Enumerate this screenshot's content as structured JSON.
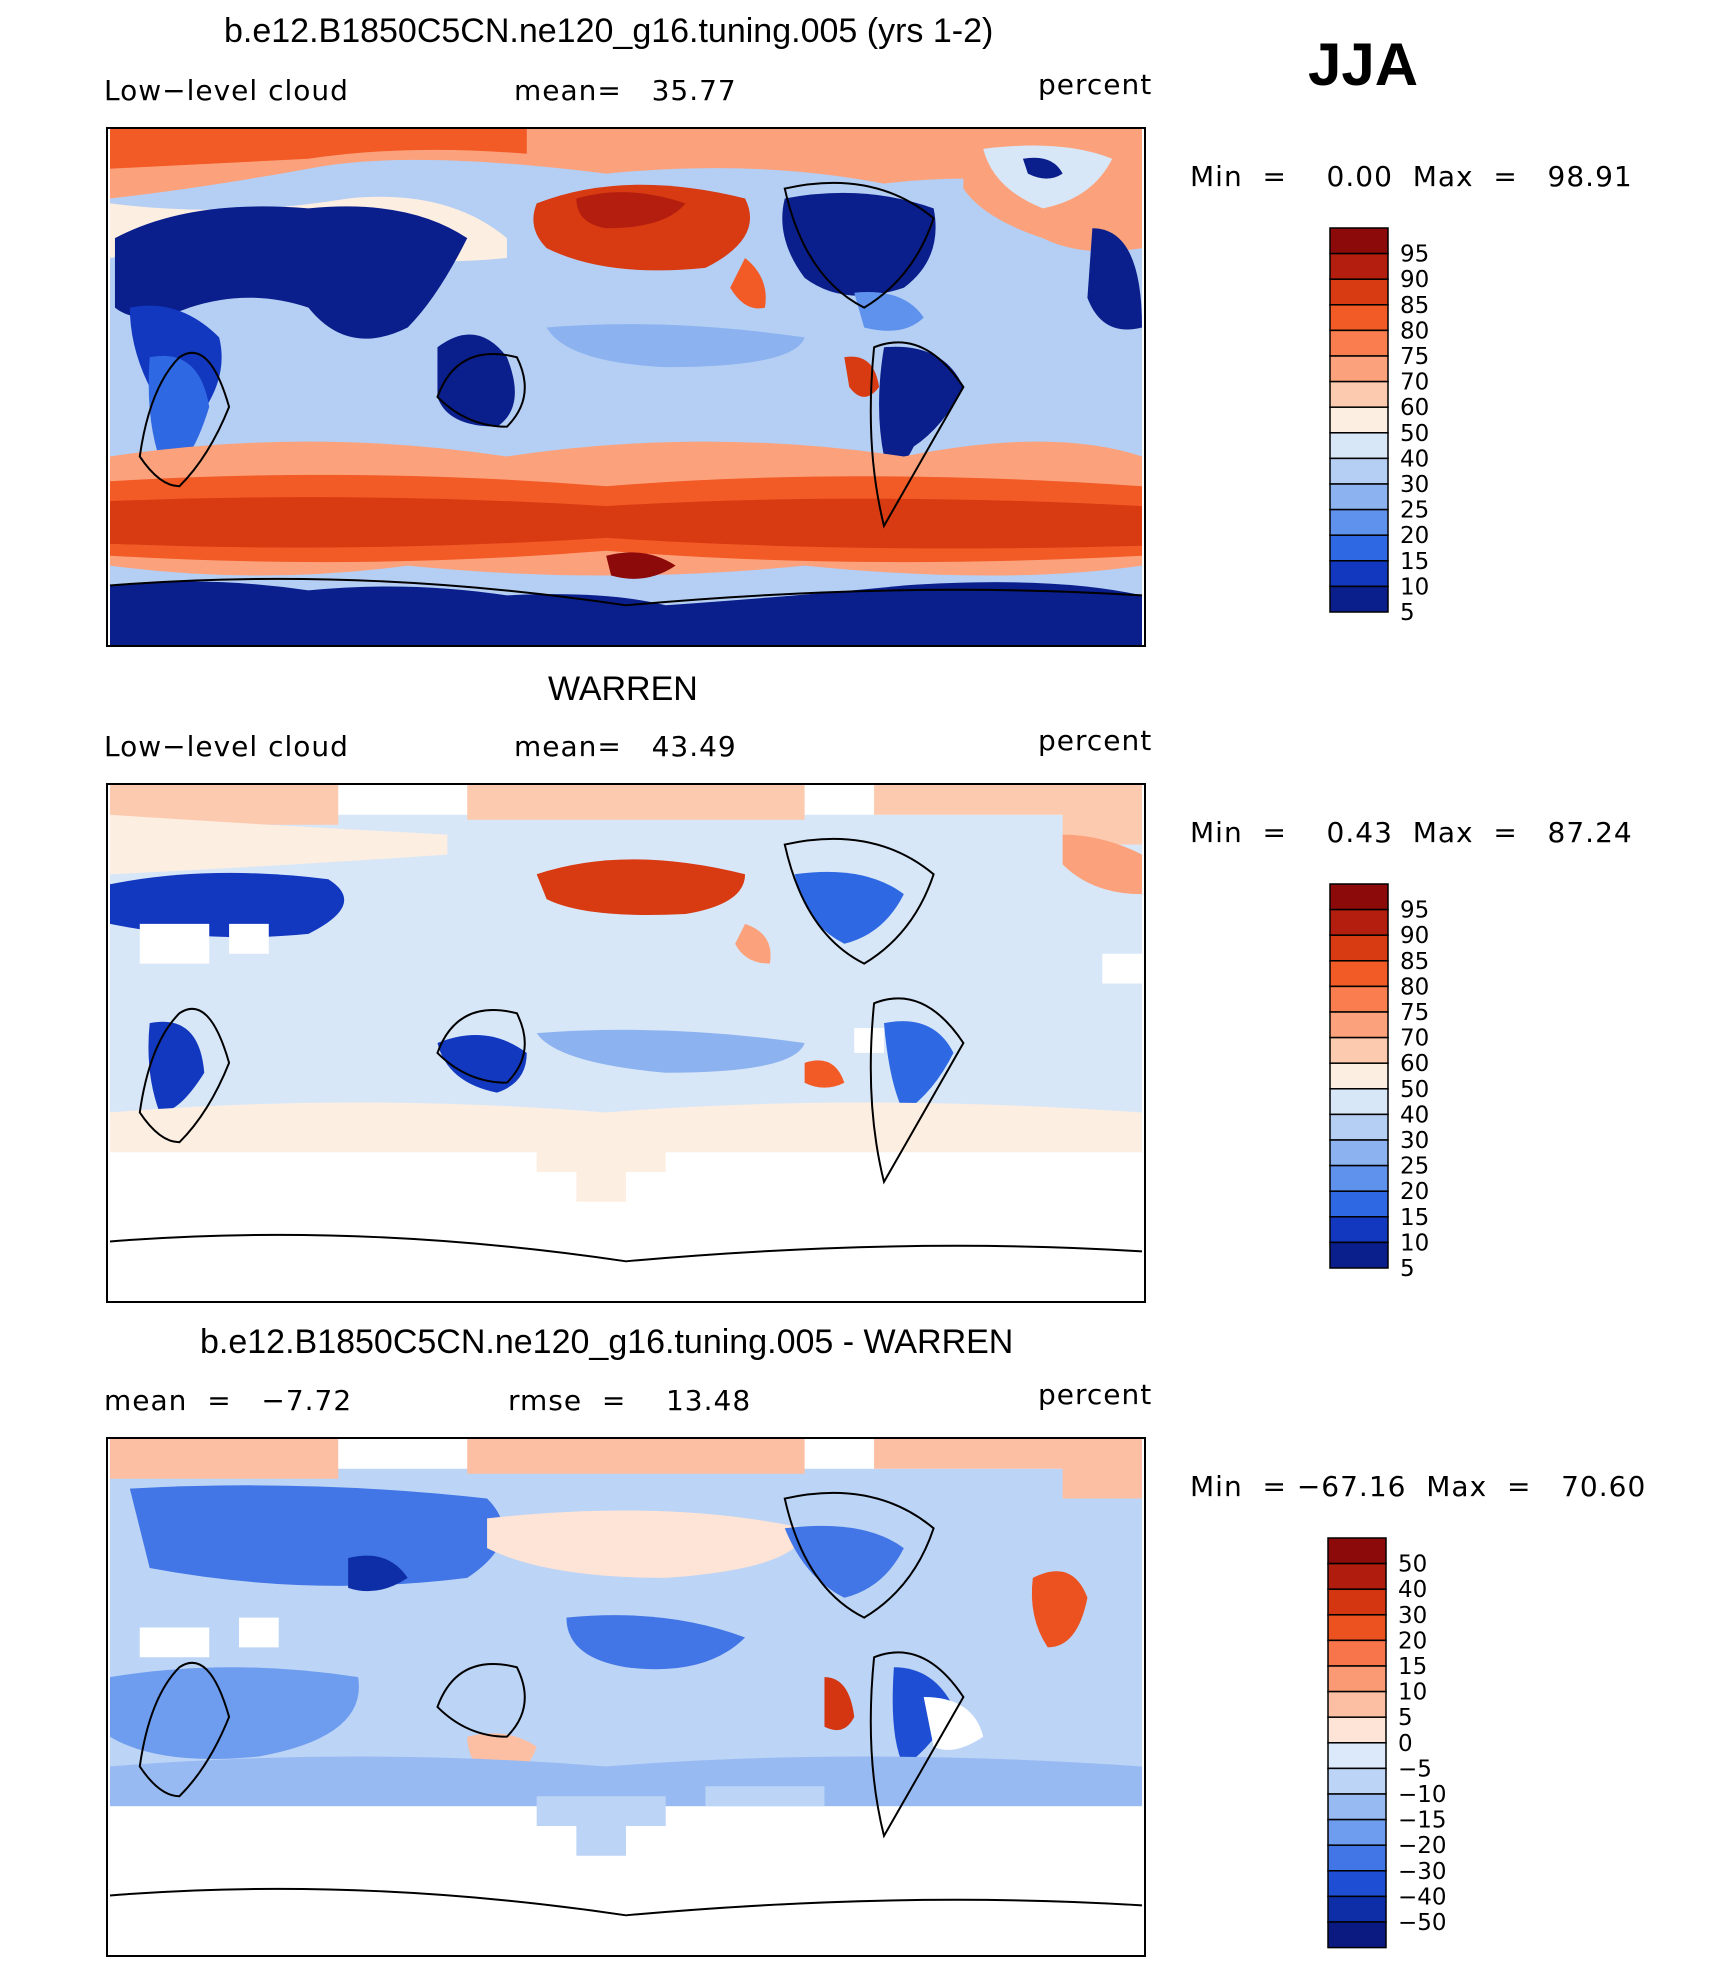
{
  "chart_data": [
    {
      "type": "heatmap",
      "title": "b.e12.B1850C5CN.ne120_g16.tuning.005 (yrs 1-2)",
      "field": "Low−level cloud",
      "stat_text": "mean=   35.77",
      "units": "percent",
      "minmax_text": "Min  =    0.00  Max  =   98.91",
      "season": "JJA",
      "mean": 35.77,
      "min": 0.0,
      "max": 98.91,
      "colorbar": {
        "labels": [
          "95",
          "90",
          "85",
          "80",
          "75",
          "70",
          "60",
          "50",
          "40",
          "30",
          "25",
          "20",
          "15",
          "10",
          "5"
        ],
        "colors": [
          "#8c0a0a",
          "#b31e0e",
          "#d83a12",
          "#f25a26",
          "#f97d4e",
          "#fba27c",
          "#fccaae",
          "#fdeee2",
          "#d8e7f8",
          "#b4cef4",
          "#8cb2f0",
          "#5e92ec",
          "#2e68e2",
          "#1238c0",
          "#0a1e8c"
        ]
      }
    },
    {
      "type": "heatmap",
      "title": "WARREN",
      "field": "Low−level cloud",
      "stat_text": "mean=   43.49",
      "units": "percent",
      "minmax_text": "Min  =    0.43  Max  =   87.24",
      "mean": 43.49,
      "min": 0.43,
      "max": 87.24,
      "colorbar": {
        "labels": [
          "95",
          "90",
          "85",
          "80",
          "75",
          "70",
          "60",
          "50",
          "40",
          "30",
          "25",
          "20",
          "15",
          "10",
          "5"
        ],
        "colors": [
          "#8c0a0a",
          "#b31e0e",
          "#d83a12",
          "#f25a26",
          "#f97d4e",
          "#fba27c",
          "#fccaae",
          "#fdeee2",
          "#d8e7f8",
          "#b4cef4",
          "#8cb2f0",
          "#5e92ec",
          "#2e68e2",
          "#1238c0",
          "#0a1e8c"
        ]
      }
    },
    {
      "type": "heatmap",
      "title": "b.e12.B1850C5CN.ne120_g16.tuning.005 - WARREN",
      "stat_left_text": "mean  =   −7.72",
      "stat_right_text": "rmse  =    13.48",
      "units": "percent",
      "minmax_text": "Min  = −67.16  Max  =   70.60",
      "mean": -7.72,
      "rmse": 13.48,
      "min": -67.16,
      "max": 70.6,
      "colorbar": {
        "labels": [
          "50",
          "40",
          "30",
          "20",
          "15",
          "10",
          "5",
          "0",
          "−5",
          "−10",
          "−15",
          "−20",
          "−30",
          "−40",
          "−50"
        ],
        "colors": [
          "#8c0a0a",
          "#b01c0e",
          "#d43612",
          "#ec5220",
          "#f8744a",
          "#fa9a74",
          "#fcbfa4",
          "#fde4d6",
          "#dbe9fa",
          "#bcd4f6",
          "#98baf2",
          "#6e9cee",
          "#4276e6",
          "#1e4ed4",
          "#0e2ea8",
          "#0a1a80"
        ]
      }
    }
  ]
}
